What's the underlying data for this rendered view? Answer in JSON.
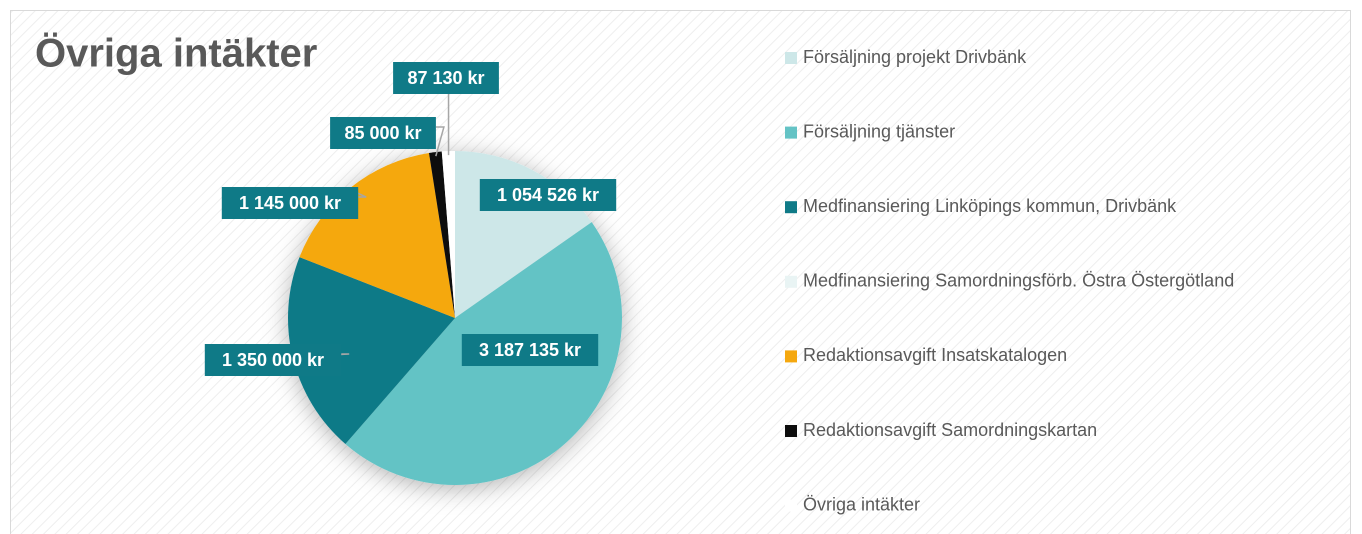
{
  "chart_data": {
    "type": "pie",
    "title": "Övriga intäkter",
    "categories": [
      "Försäljning projekt Drivbänk",
      "Försäljning tjänster",
      "Medfinansiering Linköpings kommun, Drivbänk",
      "Medfinansiering Samordningsförb. Östra Östergötland",
      "Redaktionsavgift Insatskatalogen",
      "Redaktionsavgift Samordningskartan",
      "Övriga intäkter"
    ],
    "values": [
      1054526,
      3187135,
      1350000,
      0,
      1145000,
      85000,
      87130
    ],
    "value_labels": [
      "1 054 526 kr",
      "3 187 135 kr",
      "1 350 000 kr",
      null,
      "1 145 000 kr",
      "85 000 kr",
      "87 130 kr"
    ],
    "colors": [
      "#cde7e8",
      "#64c3c5",
      "#0f7a87",
      "#e9f4f4",
      "#f5a80f",
      "#0d0d0d",
      "#ffffff"
    ],
    "legend": "right"
  }
}
